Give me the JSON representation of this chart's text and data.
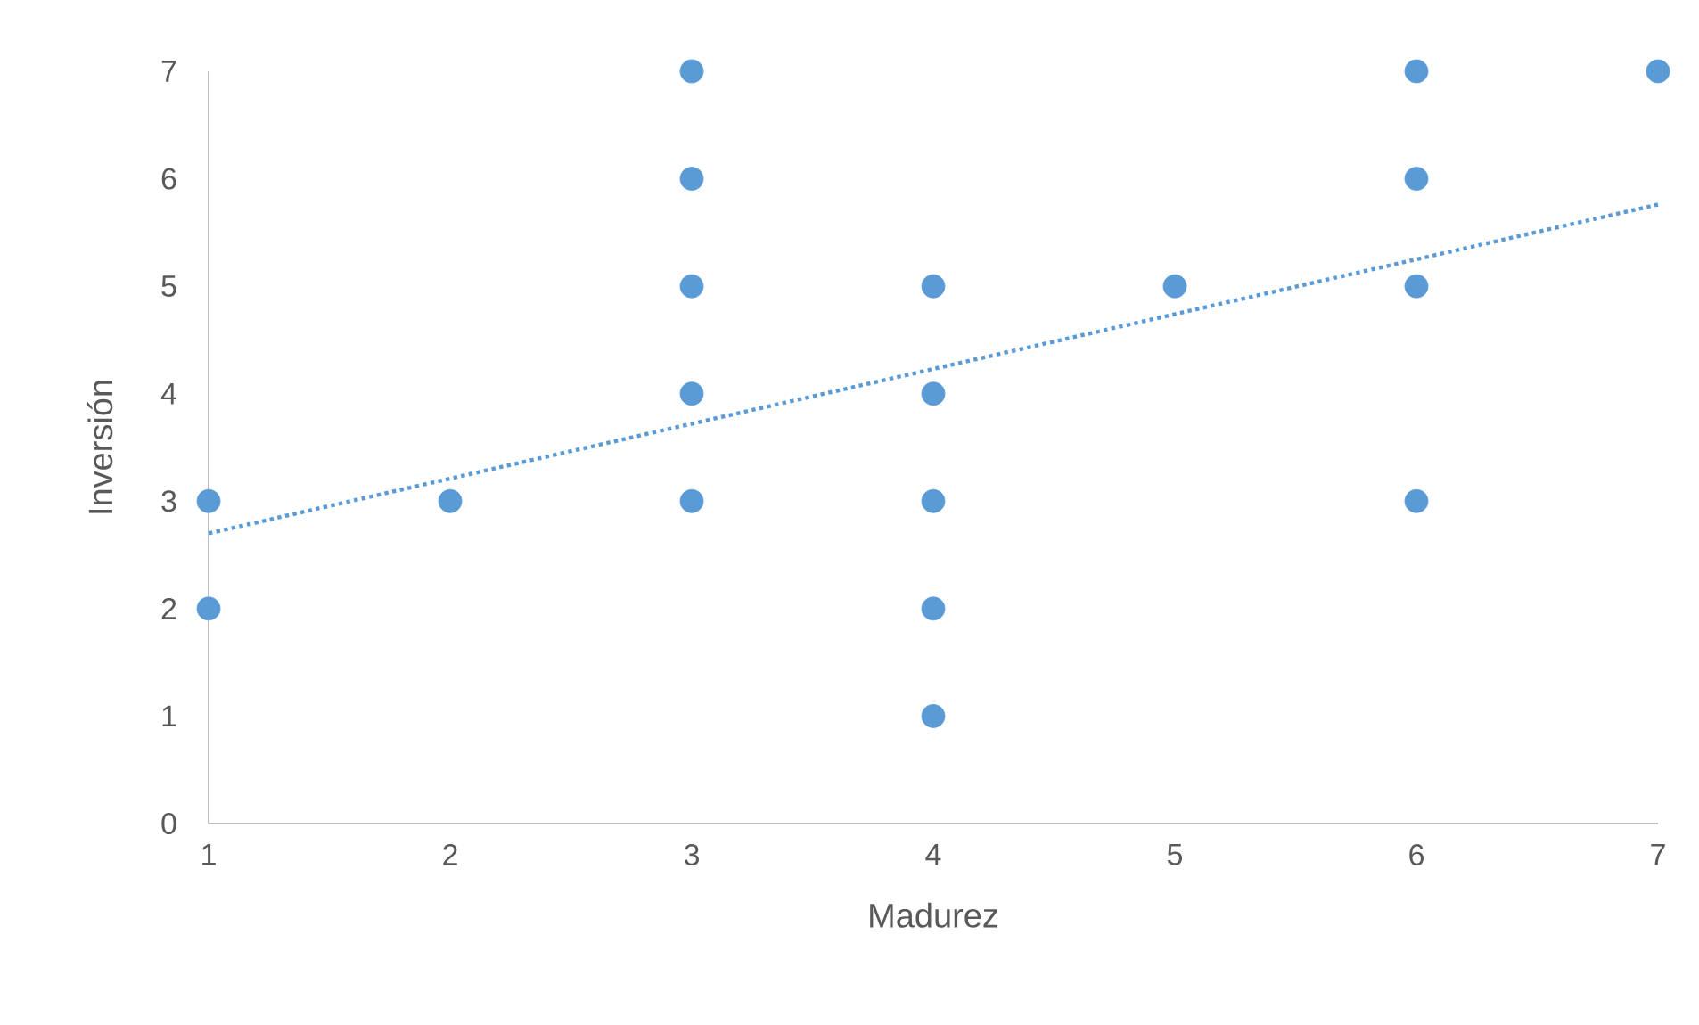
{
  "chart_data": {
    "type": "scatter",
    "xlabel": "Madurez",
    "ylabel": "Inversión",
    "xlim": [
      1,
      7
    ],
    "ylim": [
      0,
      7
    ],
    "xticks": [
      1,
      2,
      3,
      4,
      5,
      6,
      7
    ],
    "yticks": [
      0,
      1,
      2,
      3,
      4,
      5,
      6,
      7
    ],
    "series": [
      {
        "color": "#5b9bd5",
        "marker": "circle",
        "x": [
          1,
          1,
          2,
          3,
          3,
          3,
          3,
          3,
          4,
          4,
          4,
          4,
          4,
          5,
          6,
          6,
          6,
          6,
          7
        ],
        "values": [
          3,
          2,
          3,
          7,
          6,
          5,
          4,
          3,
          5,
          4,
          3,
          2,
          1,
          5,
          7,
          6,
          5,
          3,
          7
        ]
      },
      {
        "type": "line",
        "color": "#5b9bd5",
        "marker": "none",
        "line_style": "dotted",
        "x": [
          1,
          7
        ],
        "values": [
          2.7,
          5.76
        ]
      }
    ]
  }
}
